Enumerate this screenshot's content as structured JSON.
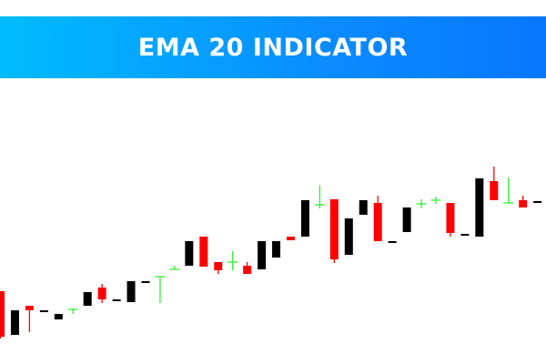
{
  "header": {
    "title": "EMA 20 INDICATOR"
  },
  "colors": {
    "banner_start": "#00bcff",
    "banner_end": "#0777ff",
    "bull": "#000000",
    "bear": "#ff0000",
    "doji": "#33ee33"
  },
  "chart_data": {
    "type": "candlestick",
    "title": "EMA 20 INDICATOR",
    "axes_visible": false,
    "grid": false,
    "candles": [
      {
        "o": 30,
        "h": 30,
        "l": 4,
        "c": 5,
        "color": "red"
      },
      {
        "o": 6,
        "h": 19.5,
        "l": 6,
        "c": 19.5,
        "color": "black"
      },
      {
        "o": 22,
        "h": 22,
        "l": 7.5,
        "c": 19.5,
        "color": "red"
      },
      {
        "o": 18.5,
        "h": 19.5,
        "l": 18.5,
        "c": 19.5,
        "color": "black"
      },
      {
        "o": 14.5,
        "h": 17.5,
        "l": 14.5,
        "c": 17.5,
        "color": "black"
      },
      {
        "o": 20,
        "h": 20.5,
        "l": 17.5,
        "c": 20,
        "color": "green"
      },
      {
        "o": 22,
        "h": 29.5,
        "l": 22,
        "c": 29.5,
        "color": "black"
      },
      {
        "o": 32,
        "h": 34,
        "l": 23.5,
        "c": 25.5,
        "color": "red"
      },
      {
        "o": 24.5,
        "h": 25.5,
        "l": 24.5,
        "c": 25.5,
        "color": "black"
      },
      {
        "o": 24,
        "h": 35.5,
        "l": 24,
        "c": 35.5,
        "color": "black"
      },
      {
        "o": 34.5,
        "h": 35.5,
        "l": 34.5,
        "c": 35.5,
        "color": "black"
      },
      {
        "o": 38,
        "h": 38,
        "l": 23.5,
        "c": 38,
        "color": "green"
      },
      {
        "o": 42,
        "h": 44,
        "l": 42,
        "c": 42,
        "color": "green"
      },
      {
        "o": 44,
        "h": 57.5,
        "l": 44,
        "c": 57.5,
        "color": "black"
      },
      {
        "o": 60,
        "h": 60,
        "l": 43.5,
        "c": 43.5,
        "color": "red"
      },
      {
        "o": 46,
        "h": 46,
        "l": 39.5,
        "c": 41.5,
        "color": "red"
      },
      {
        "o": 46,
        "h": 52,
        "l": 41.5,
        "c": 46,
        "color": "green"
      },
      {
        "o": 44,
        "h": 46,
        "l": 39.5,
        "c": 39.5,
        "color": "red"
      },
      {
        "o": 42,
        "h": 57.5,
        "l": 42,
        "c": 57.5,
        "color": "black"
      },
      {
        "o": 48.5,
        "h": 57.5,
        "l": 48.5,
        "c": 57.5,
        "color": "black"
      },
      {
        "o": 60,
        "h": 60,
        "l": 58,
        "c": 58,
        "color": "red"
      },
      {
        "o": 60,
        "h": 80,
        "l": 60,
        "c": 80,
        "color": "black"
      },
      {
        "o": 77.5,
        "h": 88,
        "l": 75.5,
        "c": 77.5,
        "color": "green"
      },
      {
        "o": 80.5,
        "h": 80.5,
        "l": 45.5,
        "c": 47.5,
        "color": "red"
      },
      {
        "o": 50,
        "h": 70,
        "l": 50,
        "c": 70,
        "color": "black"
      },
      {
        "o": 72,
        "h": 80,
        "l": 72,
        "c": 80,
        "color": "black"
      },
      {
        "o": 78.5,
        "h": 82.5,
        "l": 57.5,
        "c": 57.5,
        "color": "red"
      },
      {
        "o": 56.5,
        "h": 57.5,
        "l": 56.5,
        "c": 57.5,
        "color": "black"
      },
      {
        "o": 62.5,
        "h": 76,
        "l": 62.5,
        "c": 76,
        "color": "black"
      },
      {
        "o": 78,
        "h": 80.5,
        "l": 75.5,
        "c": 78,
        "color": "green"
      },
      {
        "o": 80,
        "h": 82,
        "l": 78,
        "c": 80,
        "color": "green"
      },
      {
        "o": 78.5,
        "h": 78.5,
        "l": 60,
        "c": 62,
        "color": "red"
      },
      {
        "o": 60.5,
        "h": 61.5,
        "l": 60.5,
        "c": 61.5,
        "color": "black"
      },
      {
        "o": 60,
        "h": 92,
        "l": 60,
        "c": 92,
        "color": "black"
      },
      {
        "o": 90.5,
        "h": 98.5,
        "l": 80,
        "c": 80,
        "color": "red"
      },
      {
        "o": 78.5,
        "h": 92.5,
        "l": 78.5,
        "c": 78.5,
        "color": "green"
      },
      {
        "o": 80,
        "h": 82.5,
        "l": 76,
        "c": 76,
        "color": "red"
      },
      {
        "o": 78.5,
        "h": 79.5,
        "l": 78.5,
        "c": 79.5,
        "color": "black"
      }
    ]
  }
}
